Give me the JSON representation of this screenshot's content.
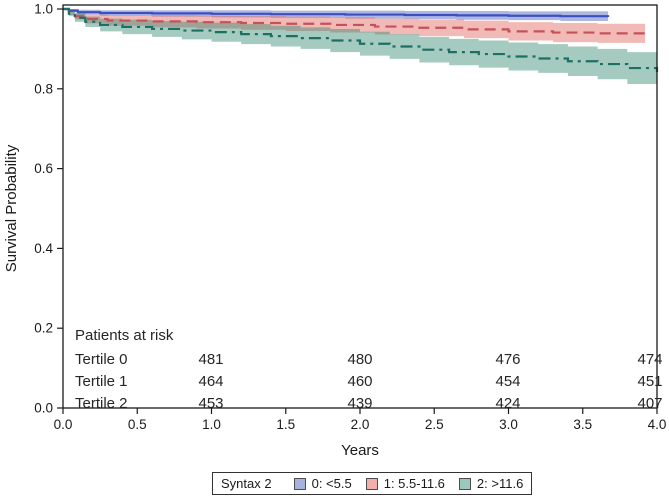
{
  "figure": {
    "background": "#ffffff"
  },
  "chart_data": {
    "type": "line",
    "subtype": "kaplan-meier-survival-curves-with-confidence-bands",
    "title": "",
    "xlabel": "Years",
    "ylabel": "Survival Probability",
    "xlim": [
      0,
      4
    ],
    "ylim": [
      0.0,
      1.0
    ],
    "xticks": [
      0.0,
      0.5,
      1.0,
      1.5,
      2.0,
      2.5,
      3.0,
      3.5,
      4.0
    ],
    "yticks": [
      0.0,
      0.2,
      0.4,
      0.6,
      0.8,
      1.0
    ],
    "grid": false,
    "legend_position": "bottom-center",
    "axis_color": "#1a1a1a",
    "confidence_bands": true,
    "series": [
      {
        "id": "tertile-0",
        "name": "0: <5.5",
        "line_style": "solid",
        "dash": "",
        "line_color": "#3b4fc1",
        "band_color": "rgba(62,84,186,0.42)",
        "points": [
          [
            0,
            1.0,
            0
          ],
          [
            0.04,
            0.996,
            0.004
          ],
          [
            0.1,
            0.992,
            0.006
          ],
          [
            0.25,
            0.99,
            0.007
          ],
          [
            0.6,
            0.989,
            0.008
          ],
          [
            1.0,
            0.988,
            0.009
          ],
          [
            1.4,
            0.987,
            0.009
          ],
          [
            1.9,
            0.986,
            0.01
          ],
          [
            2.3,
            0.985,
            0.01
          ],
          [
            2.65,
            0.984,
            0.011
          ],
          [
            3.0,
            0.983,
            0.011
          ],
          [
            3.35,
            0.982,
            0.012
          ],
          [
            3.67,
            0.98,
            0.012
          ]
        ]
      },
      {
        "id": "tertile-1",
        "name": "1: 5.5-11.6",
        "line_style": "dashed",
        "dash": "11 6",
        "line_color": "#c5525a",
        "band_color": "rgba(222,90,82,0.42)",
        "points": [
          [
            0,
            1.0,
            0
          ],
          [
            0.04,
            0.99,
            0.005
          ],
          [
            0.08,
            0.982,
            0.008
          ],
          [
            0.15,
            0.975,
            0.011
          ],
          [
            0.3,
            0.971,
            0.013
          ],
          [
            0.6,
            0.969,
            0.015
          ],
          [
            0.9,
            0.967,
            0.016
          ],
          [
            1.2,
            0.965,
            0.017
          ],
          [
            1.5,
            0.963,
            0.018
          ],
          [
            1.8,
            0.96,
            0.019
          ],
          [
            2.1,
            0.956,
            0.02
          ],
          [
            2.4,
            0.953,
            0.021
          ],
          [
            2.7,
            0.949,
            0.022
          ],
          [
            3.0,
            0.944,
            0.023
          ],
          [
            3.3,
            0.941,
            0.024
          ],
          [
            3.6,
            0.939,
            0.024
          ],
          [
            3.92,
            0.937,
            0.025
          ]
        ]
      },
      {
        "id": "tertile-2",
        "name": "2: >11.6",
        "line_style": "dash-dot",
        "dash": "12 5 3 5",
        "line_color": "#1c6f63",
        "band_color": "rgba(40,131,108,0.42)",
        "points": [
          [
            0,
            1.0,
            0
          ],
          [
            0.04,
            0.988,
            0.006
          ],
          [
            0.08,
            0.978,
            0.01
          ],
          [
            0.15,
            0.968,
            0.013
          ],
          [
            0.25,
            0.96,
            0.016
          ],
          [
            0.4,
            0.955,
            0.018
          ],
          [
            0.6,
            0.95,
            0.02
          ],
          [
            0.8,
            0.946,
            0.022
          ],
          [
            1.0,
            0.942,
            0.024
          ],
          [
            1.2,
            0.937,
            0.025
          ],
          [
            1.4,
            0.932,
            0.026
          ],
          [
            1.6,
            0.927,
            0.027
          ],
          [
            1.8,
            0.921,
            0.029
          ],
          [
            2.0,
            0.913,
            0.03
          ],
          [
            2.2,
            0.906,
            0.031
          ],
          [
            2.4,
            0.898,
            0.032
          ],
          [
            2.6,
            0.892,
            0.033
          ],
          [
            2.8,
            0.887,
            0.034
          ],
          [
            3.0,
            0.881,
            0.035
          ],
          [
            3.2,
            0.876,
            0.036
          ],
          [
            3.4,
            0.869,
            0.037
          ],
          [
            3.6,
            0.862,
            0.038
          ],
          [
            3.8,
            0.852,
            0.04
          ],
          [
            4.0,
            0.842,
            0.042
          ]
        ]
      }
    ],
    "risk_table_years": [
      1,
      2,
      3,
      4
    ]
  },
  "risk_table": {
    "title": "Patients at risk",
    "rows": [
      {
        "label": "Tertile 0",
        "counts": [
          "481",
          "480",
          "476",
          "474"
        ]
      },
      {
        "label": "Tertile 1",
        "counts": [
          "464",
          "460",
          "454",
          "451"
        ]
      },
      {
        "label": "Tertile 2",
        "counts": [
          "453",
          "439",
          "424",
          "407"
        ]
      }
    ]
  },
  "legend": {
    "title": "Syntax 2",
    "items": [
      {
        "label": "0: <5.5",
        "swatch_color": "#a8b2df"
      },
      {
        "label": "1: 5.5-11.6",
        "swatch_color": "#f0b0ab"
      },
      {
        "label": "2: >11.6",
        "swatch_color": "#9dc7bc"
      }
    ]
  }
}
